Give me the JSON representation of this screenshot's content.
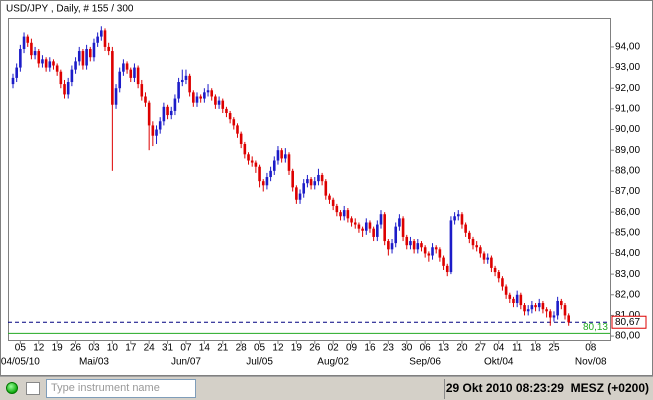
{
  "chart_data": {
    "type": "candlestick",
    "title": "USD/JPY , Daily, # 155 / 300",
    "x": [
      "2010-04-01",
      "2010-04-02",
      "2010-04-05",
      "2010-04-06",
      "2010-04-07",
      "2010-04-08",
      "2010-04-09",
      "2010-04-12",
      "2010-04-13",
      "2010-04-14",
      "2010-04-15",
      "2010-04-16",
      "2010-04-19",
      "2010-04-20",
      "2010-04-21",
      "2010-04-22",
      "2010-04-23",
      "2010-04-26",
      "2010-04-27",
      "2010-04-28",
      "2010-04-29",
      "2010-04-30",
      "2010-05-03",
      "2010-05-04",
      "2010-05-05",
      "2010-05-06",
      "2010-05-07",
      "2010-05-10",
      "2010-05-11",
      "2010-05-12",
      "2010-05-13",
      "2010-05-14",
      "2010-05-17",
      "2010-05-18",
      "2010-05-19",
      "2010-05-20",
      "2010-05-21",
      "2010-05-24",
      "2010-05-25",
      "2010-05-26",
      "2010-05-27",
      "2010-05-28",
      "2010-05-31",
      "2010-06-01",
      "2010-06-02",
      "2010-06-03",
      "2010-06-04",
      "2010-06-07",
      "2010-06-08",
      "2010-06-09",
      "2010-06-10",
      "2010-06-11",
      "2010-06-14",
      "2010-06-15",
      "2010-06-16",
      "2010-06-17",
      "2010-06-18",
      "2010-06-21",
      "2010-06-22",
      "2010-06-23",
      "2010-06-24",
      "2010-06-25",
      "2010-06-28",
      "2010-06-29",
      "2010-06-30",
      "2010-07-01",
      "2010-07-02",
      "2010-07-05",
      "2010-07-06",
      "2010-07-07",
      "2010-07-08",
      "2010-07-09",
      "2010-07-12",
      "2010-07-13",
      "2010-07-14",
      "2010-07-15",
      "2010-07-16",
      "2010-07-19",
      "2010-07-20",
      "2010-07-21",
      "2010-07-22",
      "2010-07-23",
      "2010-07-26",
      "2010-07-27",
      "2010-07-28",
      "2010-07-29",
      "2010-07-30",
      "2010-08-02",
      "2010-08-03",
      "2010-08-04",
      "2010-08-05",
      "2010-08-06",
      "2010-08-09",
      "2010-08-10",
      "2010-08-11",
      "2010-08-12",
      "2010-08-13",
      "2010-08-16",
      "2010-08-17",
      "2010-08-18",
      "2010-08-19",
      "2010-08-20",
      "2010-08-23",
      "2010-08-24",
      "2010-08-25",
      "2010-08-26",
      "2010-08-27",
      "2010-08-30",
      "2010-08-31",
      "2010-09-01",
      "2010-09-02",
      "2010-09-03",
      "2010-09-06",
      "2010-09-07",
      "2010-09-08",
      "2010-09-09",
      "2010-09-10",
      "2010-09-13",
      "2010-09-14",
      "2010-09-15",
      "2010-09-16",
      "2010-09-17",
      "2010-09-20",
      "2010-09-21",
      "2010-09-22",
      "2010-09-23",
      "2010-09-24",
      "2010-09-27",
      "2010-09-28",
      "2010-09-29",
      "2010-09-30",
      "2010-10-01",
      "2010-10-04",
      "2010-10-05",
      "2010-10-06",
      "2010-10-07",
      "2010-10-08",
      "2010-10-11",
      "2010-10-12",
      "2010-10-13",
      "2010-10-14",
      "2010-10-15",
      "2010-10-18",
      "2010-10-19",
      "2010-10-20",
      "2010-10-21",
      "2010-10-22",
      "2010-10-25",
      "2010-10-26",
      "2010-10-27",
      "2010-10-28",
      "2010-10-29"
    ],
    "candles": [
      [
        92.2,
        92.7,
        92.0,
        92.5
      ],
      [
        92.5,
        93.2,
        92.3,
        93.0
      ],
      [
        93.0,
        94.1,
        92.8,
        93.9
      ],
      [
        93.9,
        94.7,
        93.7,
        94.5
      ],
      [
        94.5,
        94.6,
        94.0,
        94.2
      ],
      [
        94.2,
        94.4,
        93.4,
        93.6
      ],
      [
        93.6,
        94.0,
        93.4,
        93.8
      ],
      [
        93.8,
        93.9,
        93.0,
        93.2
      ],
      [
        93.2,
        93.6,
        93.0,
        93.4
      ],
      [
        93.4,
        93.5,
        92.8,
        93.0
      ],
      [
        93.0,
        93.5,
        92.8,
        93.3
      ],
      [
        93.3,
        93.4,
        92.9,
        93.1
      ],
      [
        93.1,
        93.2,
        92.6,
        92.8
      ],
      [
        92.8,
        92.9,
        92.0,
        92.2
      ],
      [
        92.2,
        92.4,
        91.5,
        91.7
      ],
      [
        91.7,
        92.5,
        91.5,
        92.3
      ],
      [
        92.3,
        93.1,
        92.1,
        92.9
      ],
      [
        92.9,
        93.5,
        92.7,
        93.3
      ],
      [
        93.3,
        94.0,
        93.1,
        93.8
      ],
      [
        93.8,
        93.9,
        92.9,
        93.1
      ],
      [
        93.1,
        94.1,
        92.9,
        93.9
      ],
      [
        93.9,
        94.0,
        93.3,
        93.5
      ],
      [
        93.5,
        94.4,
        93.3,
        94.2
      ],
      [
        94.2,
        94.7,
        94.0,
        94.5
      ],
      [
        94.5,
        95.0,
        94.3,
        94.8
      ],
      [
        94.8,
        94.9,
        93.8,
        94.0
      ],
      [
        94.0,
        94.2,
        93.6,
        93.8
      ],
      [
        93.8,
        94.0,
        88.0,
        91.2
      ],
      [
        91.2,
        92.2,
        91.0,
        92.0
      ],
      [
        92.0,
        93.0,
        91.8,
        92.8
      ],
      [
        92.8,
        93.4,
        92.6,
        93.2
      ],
      [
        93.2,
        93.3,
        92.7,
        92.9
      ],
      [
        92.9,
        93.0,
        92.3,
        92.5
      ],
      [
        92.5,
        93.2,
        92.3,
        93.0
      ],
      [
        93.0,
        93.1,
        92.0,
        92.2
      ],
      [
        92.2,
        92.4,
        91.4,
        91.6
      ],
      [
        91.6,
        91.8,
        91.1,
        91.3
      ],
      [
        91.3,
        91.4,
        89.0,
        90.2
      ],
      [
        90.2,
        90.4,
        89.2,
        89.7
      ],
      [
        89.7,
        90.2,
        89.3,
        90.0
      ],
      [
        90.0,
        90.6,
        89.8,
        90.4
      ],
      [
        90.4,
        91.3,
        90.2,
        91.1
      ],
      [
        91.1,
        91.2,
        90.5,
        90.7
      ],
      [
        90.7,
        91.1,
        90.5,
        90.9
      ],
      [
        90.9,
        91.7,
        90.7,
        91.5
      ],
      [
        91.5,
        92.5,
        91.3,
        92.3
      ],
      [
        92.3,
        92.9,
        92.1,
        92.4
      ],
      [
        92.4,
        92.9,
        92.2,
        92.6
      ],
      [
        92.6,
        92.7,
        91.6,
        91.8
      ],
      [
        91.8,
        91.9,
        91.1,
        91.3
      ],
      [
        91.3,
        91.8,
        91.1,
        91.6
      ],
      [
        91.6,
        91.7,
        91.3,
        91.5
      ],
      [
        91.5,
        92.0,
        91.3,
        91.8
      ],
      [
        91.8,
        92.2,
        91.6,
        91.9
      ],
      [
        91.9,
        92.0,
        91.4,
        91.6
      ],
      [
        91.6,
        91.7,
        91.0,
        91.2
      ],
      [
        91.2,
        91.6,
        91.0,
        91.4
      ],
      [
        91.4,
        91.5,
        90.8,
        91.0
      ],
      [
        91.0,
        91.1,
        90.6,
        90.8
      ],
      [
        90.8,
        90.9,
        90.3,
        90.5
      ],
      [
        90.5,
        90.6,
        90.0,
        90.2
      ],
      [
        90.2,
        90.3,
        89.6,
        89.8
      ],
      [
        89.8,
        89.9,
        89.1,
        89.3
      ],
      [
        89.3,
        89.4,
        88.6,
        88.8
      ],
      [
        88.8,
        88.9,
        88.3,
        88.5
      ],
      [
        88.5,
        88.7,
        88.2,
        88.4
      ],
      [
        88.4,
        88.5,
        87.9,
        88.2
      ],
      [
        88.2,
        88.3,
        87.2,
        87.5
      ],
      [
        87.5,
        87.6,
        87.0,
        87.3
      ],
      [
        87.3,
        87.9,
        87.1,
        87.7
      ],
      [
        87.7,
        88.2,
        87.5,
        88.0
      ],
      [
        88.0,
        88.7,
        87.8,
        88.5
      ],
      [
        88.5,
        89.2,
        88.3,
        89.0
      ],
      [
        89.0,
        89.1,
        88.4,
        88.6
      ],
      [
        88.6,
        89.1,
        88.4,
        88.8
      ],
      [
        88.8,
        88.9,
        87.8,
        88.0
      ],
      [
        88.0,
        88.1,
        87.0,
        87.2
      ],
      [
        87.2,
        87.3,
        86.4,
        86.6
      ],
      [
        86.6,
        87.1,
        86.4,
        86.9
      ],
      [
        86.9,
        87.6,
        86.7,
        87.4
      ],
      [
        87.4,
        87.8,
        87.2,
        87.6
      ],
      [
        87.6,
        87.7,
        87.1,
        87.3
      ],
      [
        87.3,
        87.7,
        87.1,
        87.5
      ],
      [
        87.5,
        88.1,
        87.3,
        87.8
      ],
      [
        87.8,
        87.9,
        87.3,
        87.5
      ],
      [
        87.5,
        87.6,
        86.6,
        86.8
      ],
      [
        86.8,
        86.9,
        86.4,
        86.6
      ],
      [
        86.6,
        86.7,
        86.1,
        86.3
      ],
      [
        86.3,
        86.4,
        85.8,
        86.0
      ],
      [
        86.0,
        86.1,
        85.6,
        85.8
      ],
      [
        85.8,
        86.3,
        85.6,
        86.1
      ],
      [
        86.1,
        86.2,
        85.5,
        85.7
      ],
      [
        85.7,
        85.8,
        85.3,
        85.5
      ],
      [
        85.5,
        85.7,
        85.2,
        85.4
      ],
      [
        85.4,
        85.5,
        85.0,
        85.2
      ],
      [
        85.2,
        85.3,
        84.8,
        85.1
      ],
      [
        85.1,
        85.7,
        84.9,
        85.5
      ],
      [
        85.5,
        85.6,
        85.0,
        85.2
      ],
      [
        85.2,
        85.3,
        84.6,
        84.8
      ],
      [
        84.8,
        85.6,
        84.6,
        85.4
      ],
      [
        85.4,
        86.1,
        85.2,
        85.9
      ],
      [
        85.9,
        86.0,
        84.4,
        84.6
      ],
      [
        84.6,
        84.7,
        83.9,
        84.2
      ],
      [
        84.2,
        84.7,
        84.0,
        84.5
      ],
      [
        84.5,
        85.5,
        84.3,
        85.3
      ],
      [
        85.3,
        85.9,
        85.1,
        85.7
      ],
      [
        85.7,
        85.8,
        84.6,
        84.8
      ],
      [
        84.8,
        84.9,
        84.2,
        84.4
      ],
      [
        84.4,
        84.8,
        84.2,
        84.6
      ],
      [
        84.6,
        84.7,
        84.0,
        84.2
      ],
      [
        84.2,
        84.7,
        84.0,
        84.5
      ],
      [
        84.5,
        84.6,
        84.1,
        84.3
      ],
      [
        84.3,
        84.4,
        83.8,
        84.0
      ],
      [
        84.0,
        84.1,
        83.6,
        83.9
      ],
      [
        83.9,
        84.5,
        83.7,
        84.3
      ],
      [
        84.3,
        84.4,
        84.0,
        84.2
      ],
      [
        84.2,
        84.3,
        83.6,
        83.8
      ],
      [
        83.8,
        83.9,
        83.2,
        83.4
      ],
      [
        83.4,
        83.5,
        82.9,
        83.1
      ],
      [
        83.1,
        85.8,
        83.0,
        85.6
      ],
      [
        85.6,
        86.0,
        85.4,
        85.8
      ],
      [
        85.8,
        86.1,
        85.6,
        85.9
      ],
      [
        85.9,
        86.0,
        85.2,
        85.4
      ],
      [
        85.4,
        85.5,
        84.8,
        85.0
      ],
      [
        85.0,
        85.1,
        84.5,
        84.7
      ],
      [
        84.7,
        84.8,
        84.2,
        84.4
      ],
      [
        84.4,
        84.6,
        84.1,
        84.3
      ],
      [
        84.3,
        84.4,
        83.8,
        84.0
      ],
      [
        84.0,
        84.1,
        83.5,
        83.7
      ],
      [
        83.7,
        84.0,
        83.5,
        83.8
      ],
      [
        83.8,
        83.9,
        83.1,
        83.3
      ],
      [
        83.3,
        83.4,
        82.9,
        83.1
      ],
      [
        83.1,
        83.2,
        82.6,
        82.8
      ],
      [
        82.8,
        82.9,
        82.2,
        82.4
      ],
      [
        82.4,
        82.5,
        81.8,
        82.0
      ],
      [
        82.0,
        82.1,
        81.6,
        81.8
      ],
      [
        81.8,
        81.9,
        81.4,
        81.6
      ],
      [
        81.6,
        82.2,
        81.4,
        82.0
      ],
      [
        82.0,
        82.1,
        81.3,
        81.5
      ],
      [
        81.5,
        81.6,
        81.0,
        81.2
      ],
      [
        81.2,
        81.5,
        81.0,
        81.3
      ],
      [
        81.3,
        81.7,
        81.1,
        81.5
      ],
      [
        81.5,
        81.6,
        81.2,
        81.4
      ],
      [
        81.4,
        81.8,
        81.2,
        81.6
      ],
      [
        81.6,
        81.7,
        81.1,
        81.3
      ],
      [
        81.3,
        81.4,
        80.9,
        81.2
      ],
      [
        81.2,
        81.3,
        80.5,
        80.9
      ],
      [
        80.9,
        81.2,
        80.7,
        81.0
      ],
      [
        81.0,
        81.9,
        80.8,
        81.7
      ],
      [
        81.7,
        81.8,
        81.3,
        81.5
      ],
      [
        81.5,
        81.6,
        80.8,
        81.0
      ],
      [
        81.0,
        81.1,
        80.5,
        80.67
      ]
    ],
    "up_color": "#1c1cc8",
    "down_color": "#dd0000",
    "ylim": [
      79.81,
      95.4
    ],
    "yticks": [
      {
        "value": 80,
        "label": "80,00"
      },
      {
        "value": 81,
        "label": "81,00"
      },
      {
        "value": 82,
        "label": "82,00"
      },
      {
        "value": 83,
        "label": "83,00"
      },
      {
        "value": 84,
        "label": "84,00"
      },
      {
        "value": 85,
        "label": "85,00"
      },
      {
        "value": 86,
        "label": "86,00"
      },
      {
        "value": 87,
        "label": "87,00"
      },
      {
        "value": 88,
        "label": "88,00"
      },
      {
        "value": 89,
        "label": "89,00"
      },
      {
        "value": 90,
        "label": "90,00"
      },
      {
        "value": 91,
        "label": "91,00"
      },
      {
        "value": 92,
        "label": "92,00"
      },
      {
        "value": 93,
        "label": "93,00"
      },
      {
        "value": 94,
        "label": "94,00"
      }
    ],
    "xticks": [
      {
        "value": "2010-04-05",
        "label": "05"
      },
      {
        "value": "2010-04-12",
        "label": "12"
      },
      {
        "value": "2010-04-19",
        "label": "19"
      },
      {
        "value": "2010-04-26",
        "label": "26"
      },
      {
        "value": "2010-05-03",
        "label": "03"
      },
      {
        "value": "2010-05-10",
        "label": "10"
      },
      {
        "value": "2010-05-17",
        "label": "17"
      },
      {
        "value": "2010-05-24",
        "label": "24"
      },
      {
        "value": "2010-05-31",
        "label": "31"
      },
      {
        "value": "2010-06-07",
        "label": "07"
      },
      {
        "value": "2010-06-14",
        "label": "14"
      },
      {
        "value": "2010-06-21",
        "label": "21"
      },
      {
        "value": "2010-06-28",
        "label": "28"
      },
      {
        "value": "2010-07-05",
        "label": "05"
      },
      {
        "value": "2010-07-12",
        "label": "12"
      },
      {
        "value": "2010-07-19",
        "label": "19"
      },
      {
        "value": "2010-07-26",
        "label": "26"
      },
      {
        "value": "2010-08-02",
        "label": "02"
      },
      {
        "value": "2010-08-09",
        "label": "09"
      },
      {
        "value": "2010-08-16",
        "label": "16"
      },
      {
        "value": "2010-08-23",
        "label": "23"
      },
      {
        "value": "2010-08-30",
        "label": "30"
      },
      {
        "value": "2010-09-06",
        "label": "06"
      },
      {
        "value": "2010-09-13",
        "label": "13"
      },
      {
        "value": "2010-09-20",
        "label": "20"
      },
      {
        "value": "2010-09-27",
        "label": "27"
      },
      {
        "value": "2010-10-04",
        "label": "04"
      },
      {
        "value": "2010-10-11",
        "label": "11"
      },
      {
        "value": "2010-10-18",
        "label": "18"
      },
      {
        "value": "2010-10-25",
        "label": "25"
      },
      {
        "value": "2010-11-08",
        "label": "08"
      }
    ],
    "xticks_month": [
      {
        "value": "2010-04-05",
        "label": "04/05/10"
      },
      {
        "value": "2010-05-03",
        "label": "Mai/03"
      },
      {
        "value": "2010-06-07",
        "label": "Jun/07"
      },
      {
        "value": "2010-07-05",
        "label": "Jul/05"
      },
      {
        "value": "2010-08-02",
        "label": "Aug/02"
      },
      {
        "value": "2010-09-06",
        "label": "Sep/06"
      },
      {
        "value": "2010-10-04",
        "label": "Okt/04"
      },
      {
        "value": "2010-11-08",
        "label": "Nov/08"
      }
    ],
    "price_line": {
      "value": 80.67,
      "label": "80,67",
      "color": "#000080"
    },
    "level_line": {
      "value": 80.13,
      "label": "80,13",
      "color": "#22aa22"
    }
  },
  "status_bar": {
    "search_placeholder": "Type instrument name",
    "datetime": "29 Okt 2010 08:23:29",
    "timezone": "MESZ (+0200)"
  }
}
